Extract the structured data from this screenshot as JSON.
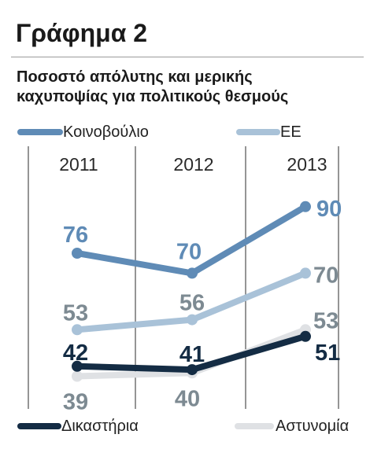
{
  "header": {
    "title": "Γράφημα 2",
    "subtitle_line1": "Ποσοστό απόλυτης και μερικής",
    "subtitle_line2": "καχυποψίας για πολιτικούς θεσμούς"
  },
  "colors": {
    "parliament": "#5f8bb6",
    "eu": "#a9c2d8",
    "courts": "#142c44",
    "police": "#dfe1e4",
    "label_gray": "#7d8a92"
  },
  "chart_data": {
    "type": "line",
    "title": "Ποσοστό απόλυτης και μερικής καχυποψίας για πολιτικούς θεσμούς",
    "x": [
      "2011",
      "2012",
      "2013"
    ],
    "ylabel": "",
    "grid": "vertical",
    "legend_placement": "top and bottom",
    "series": [
      {
        "name": "Κοινοβούλιο",
        "values": [
          76,
          70,
          90
        ],
        "labels": [
          "76",
          "70",
          "90"
        ]
      },
      {
        "name": "ΕΕ",
        "values": [
          53,
          56,
          70
        ],
        "labels": [
          "53",
          "56",
          "70"
        ]
      },
      {
        "name": "Δικαστήρια",
        "values": [
          42,
          41,
          51
        ],
        "labels": [
          "42",
          "41",
          "51"
        ]
      },
      {
        "name": "Αστυνομία",
        "values": [
          39,
          40,
          53
        ],
        "labels": [
          "39",
          "40",
          "53"
        ]
      }
    ]
  }
}
